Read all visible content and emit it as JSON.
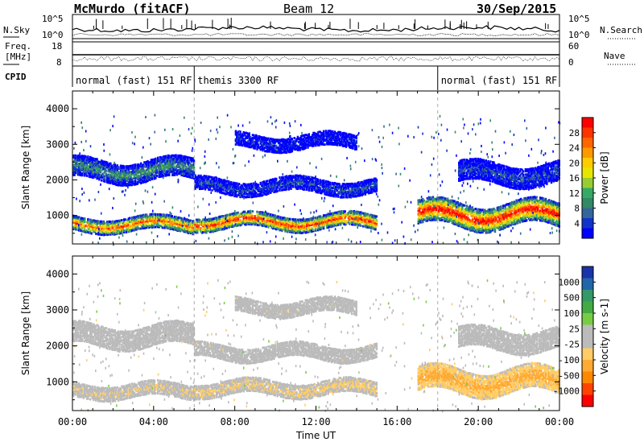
{
  "header": {
    "station": "McMurdo (fitACF)",
    "beam": "Beam 12",
    "date": "30/Sep/2015"
  },
  "panel_labels": {
    "nsky": "N.Sky",
    "nsearch": "N.Search",
    "freq_line1": "Freq.",
    "freq_line2": "[MHz]",
    "nave": "Nave",
    "cpid": "CPID",
    "nsky_ticks": [
      "10^5",
      "10^0"
    ],
    "nsearch_ticks": [
      "10^5",
      "10^0"
    ],
    "freq_ticks": [
      "18",
      "8"
    ],
    "nave_ticks": [
      "60",
      "0"
    ]
  },
  "cpid_segments": [
    {
      "label": "normal (fast) 151 RF",
      "start_hour": 0,
      "end_hour": 6
    },
    {
      "label": "themis 3300 RF",
      "start_hour": 6,
      "end_hour": 18
    },
    {
      "label": "normal (fast) 151 RF",
      "start_hour": 18,
      "end_hour": 24
    }
  ],
  "chart_data": [
    {
      "type": "heatmap",
      "name": "power",
      "ylabel": "Slant Range [km]",
      "xlabel": "",
      "yticks": [
        1000,
        2000,
        3000,
        4000
      ],
      "ylim": [
        200,
        4500
      ],
      "xlim": [
        0,
        24
      ],
      "colorbar_label": "Power [dB]",
      "colorbar_ticks": [
        "28",
        "24",
        "20",
        "16",
        "12",
        "8",
        "4"
      ],
      "colorbar_colors": [
        "#ff0000",
        "#ff3300",
        "#ff6600",
        "#ff9900",
        "#ffcc00",
        "#e6e600",
        "#99cc33",
        "#33aa66",
        "#338866",
        "#336699",
        "#1133cc",
        "#0000ff"
      ],
      "bands": [
        {
          "t0": 0.0,
          "t1": 6.0,
          "r_center": 780,
          "r_half": 180,
          "level": 24
        },
        {
          "t0": 6.0,
          "t1": 15.0,
          "r_center": 850,
          "r_half": 200,
          "level": 26
        },
        {
          "t0": 17.0,
          "t1": 24.0,
          "r_center": 1050,
          "r_half": 300,
          "level": 28
        },
        {
          "t0": 0.0,
          "t1": 6.0,
          "r_center": 2300,
          "r_half": 250,
          "level": 12
        },
        {
          "t0": 6.0,
          "t1": 15.0,
          "r_center": 1850,
          "r_half": 200,
          "level": 8
        },
        {
          "t0": 8.0,
          "t1": 14.0,
          "r_center": 3100,
          "r_half": 200,
          "level": 6
        },
        {
          "t0": 19.0,
          "t1": 24.0,
          "r_center": 2200,
          "r_half": 250,
          "level": 8
        }
      ]
    },
    {
      "type": "heatmap",
      "name": "velocity",
      "ylabel": "Slant Range [km]",
      "xlabel": "Time UT",
      "yticks": [
        1000,
        2000,
        3000,
        4000
      ],
      "ylim": [
        200,
        4500
      ],
      "xlim": [
        0,
        24
      ],
      "xticks": [
        "00:00",
        "04:00",
        "08:00",
        "12:00",
        "16:00",
        "20:00",
        "00:00"
      ],
      "colorbar_label": "Velocity [m s-1]",
      "colorbar_ticks": [
        "1000",
        "500",
        "100",
        "25",
        "-25",
        "-100",
        "-500",
        "-1000"
      ],
      "colorbar_colors": [
        "#1a33aa",
        "#2266aa",
        "#339966",
        "#44aa44",
        "#77cc44",
        "#bbbbbb",
        "#bbbbbb",
        "#ffcc66",
        "#ffaa33",
        "#ff8800",
        "#ff4400",
        "#ff0000"
      ],
      "bands": [
        {
          "t0": 0.0,
          "t1": 6.0,
          "r_center": 780,
          "r_half": 180,
          "level": -150
        },
        {
          "t0": 6.0,
          "t1": 15.0,
          "r_center": 850,
          "r_half": 200,
          "level": -200
        },
        {
          "t0": 17.0,
          "t1": 24.0,
          "r_center": 1050,
          "r_half": 300,
          "level": -400
        },
        {
          "t0": 0.0,
          "t1": 6.0,
          "r_center": 2300,
          "r_half": 250,
          "level": 0
        },
        {
          "t0": 6.0,
          "t1": 15.0,
          "r_center": 1850,
          "r_half": 200,
          "level": 0
        },
        {
          "t0": 8.0,
          "t1": 14.0,
          "r_center": 3100,
          "r_half": 200,
          "level": -100
        },
        {
          "t0": 19.0,
          "t1": 24.0,
          "r_center": 2200,
          "r_half": 250,
          "level": 0
        }
      ]
    }
  ]
}
